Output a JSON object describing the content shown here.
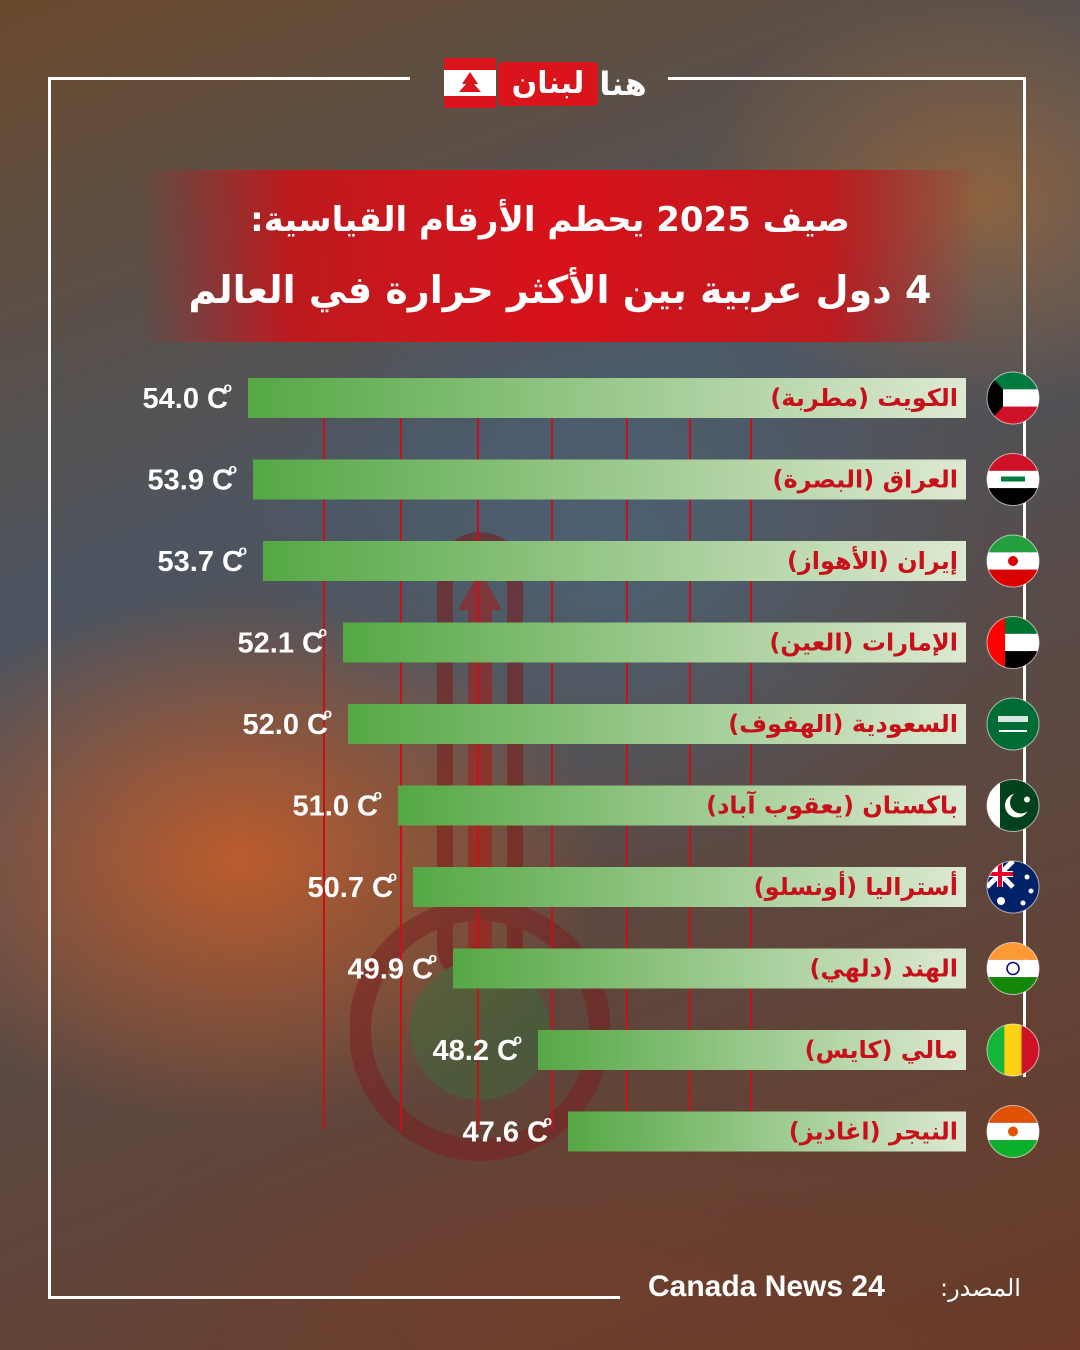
{
  "brand": {
    "logo_red_text": "لبنان",
    "logo_white_text": "هنا"
  },
  "title": {
    "line1": "صيف 2025 يحطم الأرقام القياسية:",
    "line2": "4 دول عربية بين الأكثر حرارة في العالم"
  },
  "chart_data": {
    "type": "bar",
    "orientation": "horizontal",
    "unit": "C°",
    "categories": [
      "الكويت (مطربة)",
      "العراق (البصرة)",
      "إيران (الأهواز)",
      "الإمارات (العين)",
      "السعودية (الهفوف)",
      "باكستان (يعقوب آباد)",
      "أستراليا (أونسلو)",
      "الهند (دلهي)",
      "مالي (كايس)",
      "النيجر (اغاديز)"
    ],
    "values": [
      54.0,
      53.9,
      53.7,
      52.1,
      52.0,
      51.0,
      50.7,
      49.9,
      48.2,
      47.6
    ],
    "value_labels": [
      "54.0",
      "53.9",
      "53.7",
      "52.1",
      "52.0",
      "51.0",
      "50.7",
      "49.9",
      "48.2",
      "47.6"
    ],
    "flags": [
      "kuwait-flag",
      "iraq-flag",
      "iran-flag",
      "uae-flag",
      "saudi-flag",
      "pakistan-flag",
      "australia-flag",
      "india-flag",
      "mali-flag",
      "niger-flag"
    ],
    "bar_color_start": "#55a845",
    "bar_color_end": "#dde9d2",
    "label_color": "#c8101a"
  },
  "source": {
    "label": "المصدر:",
    "value": "Canada News 24"
  }
}
